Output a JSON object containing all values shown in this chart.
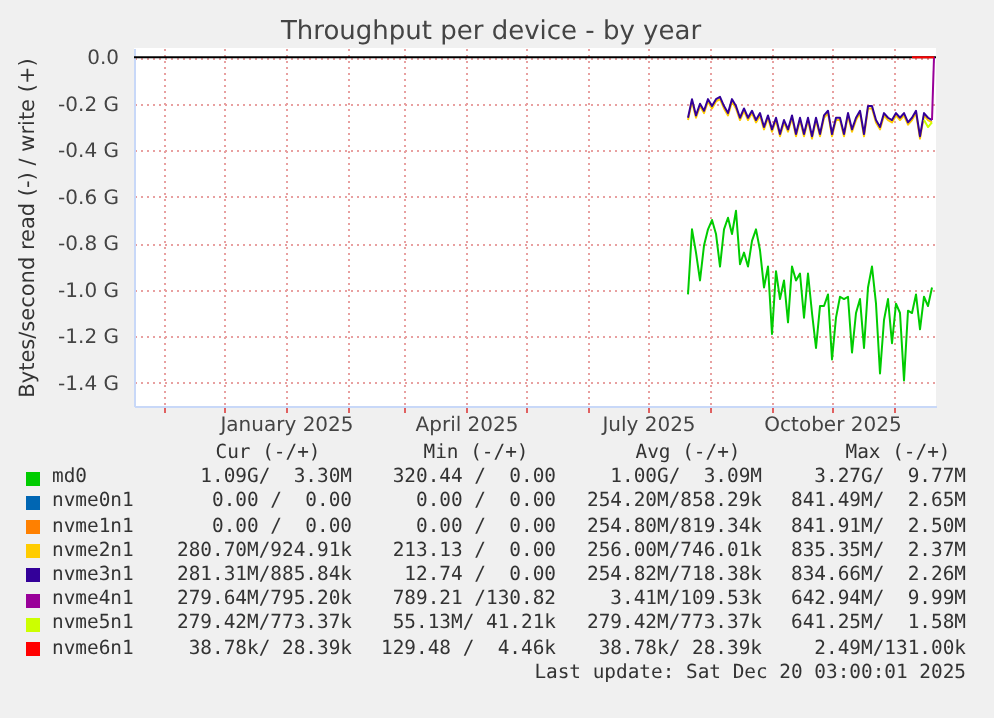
{
  "chart_data": {
    "type": "line",
    "title": "Throughput per device - by year",
    "ylabel": "Bytes/second read (-) / write (+)",
    "x": [
      "2025-07-21",
      "2025-07-23",
      "2025-07-25",
      "2025-07-27",
      "2025-07-29",
      "2025-07-31",
      "2025-08-02",
      "2025-08-04",
      "2025-08-06",
      "2025-08-08",
      "2025-08-10",
      "2025-08-12",
      "2025-08-14",
      "2025-08-16",
      "2025-08-18",
      "2025-08-20",
      "2025-08-22",
      "2025-08-24",
      "2025-08-26",
      "2025-08-28",
      "2025-08-30",
      "2025-09-01",
      "2025-09-03",
      "2025-09-05",
      "2025-09-07",
      "2025-09-09",
      "2025-09-11",
      "2025-09-13",
      "2025-09-15",
      "2025-09-17",
      "2025-09-19",
      "2025-09-21",
      "2025-09-23",
      "2025-09-25",
      "2025-09-27",
      "2025-09-29",
      "2025-10-01",
      "2025-10-03",
      "2025-10-05",
      "2025-10-07",
      "2025-10-09",
      "2025-10-11",
      "2025-10-13",
      "2025-10-15",
      "2025-10-17",
      "2025-10-19",
      "2025-10-21",
      "2025-10-23",
      "2025-10-25",
      "2025-10-27",
      "2025-10-29",
      "2025-10-31",
      "2025-11-02",
      "2025-11-04",
      "2025-11-06",
      "2025-11-08",
      "2025-11-10",
      "2025-11-12",
      "2025-11-14",
      "2025-11-16",
      "2025-11-18",
      "2025-11-20"
    ],
    "series": [
      {
        "name": "md0",
        "color": "#00cc00",
        "values": [
          -1.02,
          -0.74,
          -0.84,
          -0.96,
          -0.81,
          -0.74,
          -0.7,
          -0.76,
          -0.9,
          -0.74,
          -0.69,
          -0.76,
          -0.66,
          -0.89,
          -0.84,
          -0.9,
          -0.79,
          -0.74,
          -0.83,
          -0.99,
          -0.9,
          -1.19,
          -0.92,
          -1.04,
          -0.96,
          -1.14,
          -0.9,
          -0.96,
          -0.93,
          -1.12,
          -0.93,
          -1.1,
          -1.25,
          -1.07,
          -1.07,
          -1.02,
          -1.3,
          -1.12,
          -1.03,
          -1.04,
          -1.03,
          -1.27,
          -1.1,
          -1.04,
          -1.25,
          -0.99,
          -0.9,
          -1.06,
          -1.36,
          -1.13,
          -1.04,
          -1.23,
          -1.06,
          -1.1,
          -1.39,
          -1.09,
          -1.1,
          -1.02,
          -1.17,
          -1.03,
          -1.07,
          -0.99
        ]
      },
      {
        "name": "nvme0n1",
        "color": "#0066b3",
        "values": [
          null,
          null,
          null,
          null,
          null,
          null,
          null,
          null,
          null,
          null,
          null,
          null,
          null,
          null,
          null,
          null,
          null,
          null,
          null,
          null,
          null,
          null,
          null,
          null,
          null,
          null,
          null,
          null,
          null,
          null,
          null,
          null,
          null,
          null,
          null,
          null,
          null,
          null,
          null,
          null,
          null,
          null,
          null,
          null,
          null,
          null,
          null,
          null,
          null,
          null,
          null,
          null,
          null,
          null,
          null,
          null,
          null,
          null,
          null,
          null,
          null,
          null
        ]
      },
      {
        "name": "nvme1n1",
        "color": "#ff8000",
        "values": [
          null,
          null,
          null,
          null,
          null,
          null,
          null,
          null,
          null,
          null,
          null,
          null,
          null,
          null,
          null,
          null,
          null,
          null,
          null,
          null,
          null,
          null,
          null,
          null,
          null,
          null,
          null,
          null,
          null,
          null,
          null,
          null,
          null,
          null,
          null,
          null,
          null,
          null,
          null,
          null,
          null,
          null,
          null,
          null,
          null,
          null,
          null,
          null,
          null,
          null,
          null,
          null,
          null,
          null,
          null,
          null,
          null,
          null,
          null,
          null,
          null,
          null
        ]
      },
      {
        "name": "nvme2n1",
        "color": "#ffcc00",
        "values": [
          -0.27,
          -0.19,
          -0.26,
          -0.21,
          -0.24,
          -0.19,
          -0.22,
          -0.19,
          -0.18,
          -0.22,
          -0.25,
          -0.19,
          -0.22,
          -0.27,
          -0.23,
          -0.27,
          -0.24,
          -0.28,
          -0.25,
          -0.31,
          -0.26,
          -0.32,
          -0.27,
          -0.34,
          -0.28,
          -0.32,
          -0.26,
          -0.34,
          -0.27,
          -0.34,
          -0.27,
          -0.35,
          -0.27,
          -0.34,
          -0.26,
          -0.24,
          -0.34,
          -0.27,
          -0.27,
          -0.34,
          -0.25,
          -0.32,
          -0.27,
          -0.24,
          -0.34,
          -0.22,
          -0.22,
          -0.28,
          -0.31,
          -0.25,
          -0.27,
          -0.28,
          -0.25,
          -0.27,
          -0.25,
          -0.29,
          -0.27,
          -0.24,
          -0.35,
          -0.25,
          -0.27,
          -0.28
        ]
      },
      {
        "name": "nvme3n1",
        "color": "#330099",
        "values": [
          -0.26,
          -0.18,
          -0.25,
          -0.2,
          -0.23,
          -0.18,
          -0.21,
          -0.18,
          -0.17,
          -0.21,
          -0.24,
          -0.18,
          -0.21,
          -0.26,
          -0.22,
          -0.26,
          -0.23,
          -0.27,
          -0.24,
          -0.3,
          -0.25,
          -0.31,
          -0.26,
          -0.33,
          -0.27,
          -0.31,
          -0.25,
          -0.33,
          -0.26,
          -0.33,
          -0.26,
          -0.34,
          -0.26,
          -0.33,
          -0.25,
          -0.23,
          -0.33,
          -0.26,
          -0.26,
          -0.33,
          -0.24,
          -0.31,
          -0.26,
          -0.23,
          -0.33,
          -0.21,
          -0.21,
          -0.27,
          -0.3,
          -0.24,
          -0.26,
          -0.27,
          -0.24,
          -0.26,
          -0.24,
          -0.28,
          -0.26,
          -0.23,
          -0.34,
          -0.24,
          -0.26,
          -0.27
        ]
      },
      {
        "name": "nvme4n1",
        "color": "#990099",
        "x": [
          "2025-11-20",
          "2025-11-21"
        ],
        "values": [
          -0.27,
          0
        ]
      },
      {
        "name": "nvme5n1",
        "color": "#ccff00",
        "x": [
          "2025-11-16",
          "2025-11-18",
          "2025-11-20"
        ],
        "values": [
          -0.27,
          -0.3,
          -0.28
        ]
      },
      {
        "name": "nvme6n1",
        "color": "#ff0000",
        "x": [
          "2025-11-10",
          "2025-11-21"
        ],
        "values": [
          0,
          0
        ]
      }
    ],
    "xlim": [
      "2024-10-17",
      "2025-11-22"
    ],
    "xticks": [
      {
        "value": "2024-11-01",
        "label": null
      },
      {
        "value": "2024-12-01",
        "label": null
      },
      {
        "value": "2025-01-01",
        "label": "January 2025"
      },
      {
        "value": "2025-02-01",
        "label": null
      },
      {
        "value": "2025-03-01",
        "label": null
      },
      {
        "value": "2025-04-01",
        "label": "April 2025"
      },
      {
        "value": "2025-05-01",
        "label": null
      },
      {
        "value": "2025-06-01",
        "label": null
      },
      {
        "value": "2025-07-01",
        "label": "July 2025"
      },
      {
        "value": "2025-08-01",
        "label": null
      },
      {
        "value": "2025-09-01",
        "label": null
      },
      {
        "value": "2025-10-01",
        "label": "October 2025"
      },
      {
        "value": "2025-11-01",
        "label": null
      }
    ],
    "ylim": [
      -1.5,
      0.04
    ],
    "yticks": [
      {
        "value": -1.4,
        "label": "-1.4 G"
      },
      {
        "value": -1.2,
        "label": "-1.2 G"
      },
      {
        "value": -1.0,
        "label": "-1.0 G"
      },
      {
        "value": -0.8,
        "label": "-0.8 G"
      },
      {
        "value": -0.6,
        "label": "-0.6 G"
      },
      {
        "value": -0.4,
        "label": "-0.4 G"
      },
      {
        "value": -0.2,
        "label": "-0.2 G"
      },
      {
        "value": 0,
        "label": "0.0"
      }
    ],
    "grid": true,
    "legend": "bottom",
    "ref_lines": [
      {
        "axis": "y",
        "value": 0,
        "color": "#000000"
      }
    ],
    "annotations": [
      "Cur (-/+)",
      "Min (-/+)",
      "Avg (-/+)",
      "Max (-/+)",
      "1.09G/  3.30M",
      "320.44 /  0.00",
      "1.00G/  3.09M",
      "3.27G/  9.77M",
      "0.00 /  0.00",
      "0.00 /  0.00",
      "254.20M/858.29k",
      "841.49M/  2.65M",
      "0.00 /  0.00",
      "0.00 /  0.00",
      "254.80M/819.34k",
      "841.91M/  2.50M",
      "280.70M/924.91k",
      "213.13 /  0.00",
      "256.00M/746.01k",
      "835.35M/  2.37M",
      "281.31M/885.84k",
      "12.74 /  0.00",
      "254.82M/718.38k",
      "834.66M/  2.26M",
      "279.64M/795.20k",
      "789.21 /130.82",
      "3.41M/109.53k",
      "642.94M/  9.99M",
      "279.42M/773.37k",
      "55.13M/ 41.21k",
      "279.42M/773.37k",
      "641.25M/  1.58M",
      "38.78k/ 28.39k",
      "129.48 /  4.46k",
      "38.78k/ 28.39k",
      "2.49M/131.00k",
      "Last update: Sat Dec 20 03:00:01 2025"
    ]
  }
}
